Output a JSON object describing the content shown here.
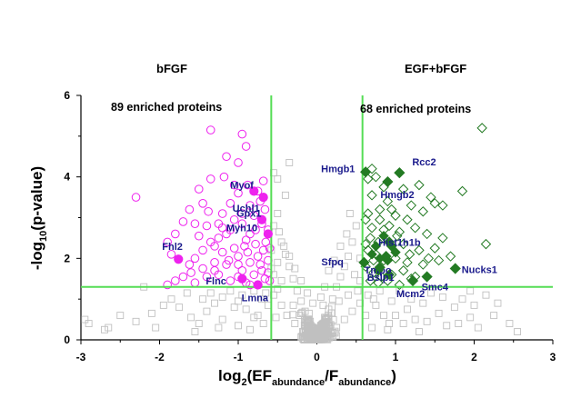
{
  "chart_data": {
    "type": "scatter",
    "xlim": [
      -3,
      3
    ],
    "ylim": [
      0,
      6
    ],
    "x_ticks": [
      "-3",
      "-2",
      "-1",
      "0",
      "1",
      "2",
      "3"
    ],
    "y_ticks": [
      "0",
      "2",
      "4",
      "6"
    ],
    "xlabel": {
      "base": "log",
      "sub1": "2",
      "part1": "(EF",
      "sub2": "abundance",
      "part2": "/F",
      "sub3": "abundance",
      "part3": ")"
    },
    "ylabel": {
      "pre": "-log",
      "sub": "10",
      "post": "(p-value)"
    },
    "panel_titles": {
      "left": "bFGF",
      "right": "EGF+bFGF"
    },
    "annotations": {
      "left": "89 enriched proteins",
      "right": "68 enriched proteins"
    },
    "thresholds": {
      "x_low": -0.58,
      "x_high": 0.58,
      "y": 1.3
    },
    "colors": {
      "left": "#ee22ee",
      "right": "#237a23",
      "nonsig": "#c0c0c0",
      "threshold": "#55dd55",
      "label": "#1a1a8c"
    },
    "labeled_left": [
      {
        "name": "Myof",
        "x": -0.8,
        "y": 3.65
      },
      {
        "name": "Uchl1",
        "x": -0.68,
        "y": 3.5
      },
      {
        "name": "Gpx1",
        "x": -0.7,
        "y": 2.95
      },
      {
        "name": "Myh10",
        "x": -0.62,
        "y": 2.6
      },
      {
        "name": "Fhl2",
        "x": -1.76,
        "y": 1.98
      },
      {
        "name": "Flnc",
        "x": -0.95,
        "y": 1.5
      },
      {
        "name": "Lmna",
        "x": -0.75,
        "y": 1.35
      }
    ],
    "labeled_right": [
      {
        "name": "Hmgb1",
        "x": 0.62,
        "y": 4.12
      },
      {
        "name": "Rcc2",
        "x": 1.05,
        "y": 4.1
      },
      {
        "name": "Hmgb2",
        "x": 0.9,
        "y": 3.88
      },
      {
        "name": "Hist1h1b",
        "x": 0.92,
        "y": 2.4
      },
      {
        "name": "Tmpo",
        "x": 0.88,
        "y": 2.05
      },
      {
        "name": "Sfpq",
        "x": 0.6,
        "y": 1.9
      },
      {
        "name": "Bslp1",
        "x": 0.8,
        "y": 1.78
      },
      {
        "name": "Nucks1",
        "x": 1.76,
        "y": 1.75
      },
      {
        "name": "Smc4",
        "x": 1.4,
        "y": 1.55
      },
      {
        "name": "Mcm2",
        "x": 1.22,
        "y": 1.45
      }
    ],
    "open_left": [
      [
        -2.3,
        3.5
      ],
      [
        -1.35,
        5.15
      ],
      [
        -0.95,
        5.05
      ],
      [
        -0.9,
        4.75
      ],
      [
        -1.15,
        4.5
      ],
      [
        -1.18,
        4.0
      ],
      [
        -1.0,
        4.35
      ],
      [
        -1.35,
        3.95
      ],
      [
        -1.5,
        3.7
      ],
      [
        -1.62,
        3.2
      ],
      [
        -1.7,
        2.9
      ],
      [
        -1.8,
        2.6
      ],
      [
        -1.9,
        2.4
      ],
      [
        -1.85,
        2.1
      ],
      [
        -1.55,
        2.0
      ],
      [
        -1.45,
        2.2
      ],
      [
        -1.3,
        2.3
      ],
      [
        -1.25,
        2.5
      ],
      [
        -1.1,
        2.7
      ],
      [
        -1.05,
        2.95
      ],
      [
        -0.95,
        3.1
      ],
      [
        -0.85,
        3.3
      ],
      [
        -1.0,
        3.6
      ],
      [
        -1.1,
        3.35
      ],
      [
        -1.2,
        3.1
      ],
      [
        -1.4,
        2.8
      ],
      [
        -1.5,
        2.55
      ],
      [
        -1.35,
        2.4
      ],
      [
        -1.2,
        2.15
      ],
      [
        -1.05,
        2.25
      ],
      [
        -0.9,
        2.45
      ],
      [
        -0.78,
        2.7
      ],
      [
        -0.7,
        2.85
      ],
      [
        -0.66,
        3.2
      ],
      [
        -0.72,
        3.4
      ],
      [
        -0.8,
        3.05
      ],
      [
        -0.85,
        2.6
      ],
      [
        -0.92,
        2.3
      ],
      [
        -1.0,
        2.05
      ],
      [
        -1.15,
        1.85
      ],
      [
        -1.3,
        1.9
      ],
      [
        -1.45,
        1.75
      ],
      [
        -1.6,
        1.65
      ],
      [
        -1.7,
        1.55
      ],
      [
        -1.8,
        1.45
      ],
      [
        -1.9,
        1.35
      ],
      [
        -1.55,
        1.4
      ],
      [
        -1.4,
        1.55
      ],
      [
        -1.25,
        1.6
      ],
      [
        -1.1,
        1.45
      ],
      [
        -0.95,
        1.7
      ],
      [
        -0.85,
        1.9
      ],
      [
        -0.75,
        2.05
      ],
      [
        -0.68,
        2.2
      ],
      [
        -0.65,
        2.4
      ],
      [
        -0.7,
        1.7
      ],
      [
        -0.8,
        1.6
      ],
      [
        -0.9,
        1.4
      ],
      [
        -1.0,
        1.55
      ],
      [
        -0.66,
        1.5
      ],
      [
        -0.72,
        1.85
      ],
      [
        -0.62,
        1.95
      ],
      [
        -0.62,
        2.7
      ],
      [
        -0.75,
        3.65
      ],
      [
        -0.88,
        3.8
      ],
      [
        -0.95,
        2.85
      ],
      [
        -1.15,
        2.6
      ],
      [
        -1.25,
        2.85
      ],
      [
        -1.38,
        3.15
      ],
      [
        -1.55,
        2.85
      ],
      [
        -0.68,
        3.9
      ],
      [
        -1.05,
        3.8
      ],
      [
        -0.88,
        2.15
      ],
      [
        -0.6,
        1.45
      ],
      [
        -1.62,
        1.85
      ],
      [
        -1.3,
        1.7
      ],
      [
        -1.0,
        1.85
      ],
      [
        -0.78,
        2.35
      ],
      [
        -0.6,
        2.25
      ],
      [
        -0.62,
        1.65
      ],
      [
        -0.85,
        1.35
      ],
      [
        -1.2,
        2.75
      ],
      [
        -1.45,
        3.35
      ],
      [
        -1.12,
        1.95
      ]
    ],
    "open_right": [
      [
        2.1,
        5.2
      ],
      [
        0.7,
        4.2
      ],
      [
        0.75,
        4.0
      ],
      [
        0.65,
        3.95
      ],
      [
        0.85,
        3.75
      ],
      [
        1.1,
        3.7
      ],
      [
        1.3,
        3.8
      ],
      [
        1.45,
        3.5
      ],
      [
        1.5,
        3.35
      ],
      [
        1.85,
        3.65
      ],
      [
        0.7,
        3.55
      ],
      [
        0.9,
        3.4
      ],
      [
        0.95,
        3.2
      ],
      [
        1.2,
        3.3
      ],
      [
        1.35,
        3.15
      ],
      [
        1.6,
        3.3
      ],
      [
        0.65,
        3.1
      ],
      [
        0.8,
        2.95
      ],
      [
        1.0,
        3.05
      ],
      [
        1.15,
        2.95
      ],
      [
        0.7,
        2.75
      ],
      [
        0.85,
        2.7
      ],
      [
        1.05,
        2.65
      ],
      [
        1.25,
        2.75
      ],
      [
        1.4,
        2.6
      ],
      [
        1.6,
        2.5
      ],
      [
        2.15,
        2.35
      ],
      [
        0.68,
        2.5
      ],
      [
        0.78,
        2.4
      ],
      [
        0.95,
        2.3
      ],
      [
        1.1,
        2.35
      ],
      [
        1.3,
        2.2
      ],
      [
        1.5,
        2.25
      ],
      [
        0.65,
        2.2
      ],
      [
        0.75,
        2.1
      ],
      [
        0.85,
        1.95
      ],
      [
        1.0,
        2.0
      ],
      [
        1.15,
        1.9
      ],
      [
        1.35,
        1.85
      ],
      [
        1.55,
        1.95
      ],
      [
        0.62,
        1.8
      ],
      [
        0.72,
        1.65
      ],
      [
        0.82,
        1.55
      ],
      [
        0.95,
        1.6
      ],
      [
        1.1,
        1.7
      ],
      [
        1.25,
        1.55
      ],
      [
        0.68,
        1.45
      ],
      [
        0.78,
        1.4
      ],
      [
        0.9,
        1.45
      ],
      [
        1.05,
        1.35
      ],
      [
        1.2,
        1.5
      ],
      [
        0.62,
        2.35
      ],
      [
        0.62,
        2.95
      ],
      [
        1.7,
        2.05
      ],
      [
        1.02,
        2.55
      ],
      [
        0.8,
        3.2
      ],
      [
        1.18,
        2.1
      ],
      [
        0.92,
        2.8
      ],
      [
        0.72,
        1.95
      ],
      [
        1.42,
        2.0
      ]
    ],
    "filled_right_extra": [
      [
        0.85,
        2.55
      ],
      [
        0.95,
        2.3
      ],
      [
        1.0,
        2.15
      ],
      [
        0.75,
        2.3
      ],
      [
        0.8,
        2.0
      ],
      [
        0.7,
        2.1
      ],
      [
        0.9,
        1.95
      ],
      [
        0.78,
        1.7
      ],
      [
        0.92,
        1.6
      ]
    ],
    "nonsig": [
      [
        -2.95,
        0.5
      ],
      [
        -2.9,
        0.4
      ],
      [
        -2.65,
        0.3
      ],
      [
        -2.5,
        0.6
      ],
      [
        -2.3,
        0.45
      ],
      [
        -2.1,
        0.65
      ],
      [
        -1.95,
        0.85
      ],
      [
        -1.85,
        1.0
      ],
      [
        -1.75,
        0.8
      ],
      [
        -1.6,
        0.55
      ],
      [
        -1.5,
        0.4
      ],
      [
        -1.4,
        0.7
      ],
      [
        -1.3,
        0.9
      ],
      [
        -1.2,
        1.05
      ],
      [
        -1.1,
        1.2
      ],
      [
        -1.0,
        0.95
      ],
      [
        -0.9,
        0.75
      ],
      [
        -0.8,
        0.55
      ],
      [
        -0.7,
        1.0
      ],
      [
        -0.65,
        1.15
      ],
      [
        -0.62,
        0.85
      ],
      [
        -1.2,
        0.5
      ],
      [
        -1.0,
        0.35
      ],
      [
        -0.85,
        0.25
      ],
      [
        -0.75,
        0.6
      ],
      [
        -0.68,
        0.4
      ],
      [
        -1.05,
        0.8
      ],
      [
        -1.45,
        1.0
      ],
      [
        -1.65,
        1.15
      ],
      [
        -1.35,
        1.15
      ],
      [
        -1.25,
        0.3
      ],
      [
        -1.55,
        0.2
      ],
      [
        -0.95,
        1.1
      ],
      [
        -0.8,
        1.2
      ],
      [
        -2.2,
        1.3
      ],
      [
        -2.05,
        0.3
      ],
      [
        -2.7,
        0.25
      ],
      [
        -0.55,
        1.1
      ],
      [
        -0.5,
        1.25
      ],
      [
        -0.45,
        1.45
      ],
      [
        -0.55,
        1.6
      ],
      [
        -0.5,
        1.9
      ],
      [
        -0.4,
        2.1
      ],
      [
        -0.45,
        2.4
      ],
      [
        -0.55,
        2.8
      ],
      [
        -0.5,
        3.1
      ],
      [
        -0.4,
        3.55
      ],
      [
        -0.5,
        3.95
      ],
      [
        -0.35,
        4.35
      ],
      [
        -0.55,
        4.1
      ],
      [
        -0.35,
        1.8
      ],
      [
        -0.3,
        1.5
      ],
      [
        -0.25,
        1.2
      ],
      [
        -0.2,
        0.95
      ],
      [
        -0.15,
        0.7
      ],
      [
        -0.1,
        0.5
      ],
      [
        -0.05,
        0.3
      ],
      [
        0.0,
        0.2
      ],
      [
        0.05,
        0.35
      ],
      [
        0.1,
        0.55
      ],
      [
        0.15,
        0.75
      ],
      [
        0.2,
        1.0
      ],
      [
        0.25,
        1.3
      ],
      [
        0.3,
        1.55
      ],
      [
        0.35,
        1.8
      ],
      [
        0.4,
        2.05
      ],
      [
        0.45,
        2.4
      ],
      [
        0.5,
        2.8
      ],
      [
        0.42,
        3.1
      ],
      [
        0.3,
        2.3
      ],
      [
        0.22,
        1.95
      ],
      [
        0.15,
        1.7
      ],
      [
        0.1,
        1.3
      ],
      [
        0.05,
        1.05
      ],
      [
        -0.05,
        0.9
      ],
      [
        -0.12,
        1.15
      ],
      [
        -0.2,
        1.45
      ],
      [
        -0.28,
        1.75
      ],
      [
        -0.35,
        2.05
      ],
      [
        -0.42,
        2.3
      ],
      [
        -0.48,
        2.65
      ],
      [
        0.38,
        2.6
      ],
      [
        0.48,
        1.6
      ],
      [
        0.52,
        1.2
      ],
      [
        0.55,
        0.9
      ],
      [
        0.45,
        0.7
      ],
      [
        0.35,
        0.5
      ],
      [
        0.25,
        0.3
      ],
      [
        0.18,
        0.15
      ],
      [
        -0.18,
        0.2
      ],
      [
        -0.28,
        0.4
      ],
      [
        -0.38,
        0.6
      ],
      [
        -0.45,
        0.85
      ],
      [
        -0.52,
        0.55
      ],
      [
        -0.3,
        0.85
      ],
      [
        -0.22,
        0.6
      ],
      [
        -0.1,
        0.65
      ],
      [
        0.08,
        0.85
      ],
      [
        0.28,
        0.95
      ],
      [
        0.4,
        1.1
      ],
      [
        0.55,
        2.0
      ],
      [
        0.55,
        1.45
      ],
      [
        -0.58,
        1.75
      ],
      [
        -0.58,
        2.2
      ],
      [
        0.65,
        1.1
      ],
      [
        0.75,
        0.85
      ],
      [
        0.85,
        0.6
      ],
      [
        0.95,
        0.95
      ],
      [
        1.05,
        1.2
      ],
      [
        1.15,
        0.75
      ],
      [
        1.25,
        0.5
      ],
      [
        1.35,
        0.9
      ],
      [
        1.45,
        1.15
      ],
      [
        1.55,
        0.65
      ],
      [
        1.65,
        0.35
      ],
      [
        1.75,
        0.8
      ],
      [
        1.85,
        1.0
      ],
      [
        1.95,
        0.55
      ],
      [
        2.05,
        0.3
      ],
      [
        2.25,
        0.6
      ],
      [
        2.45,
        0.4
      ],
      [
        2.55,
        0.2
      ],
      [
        2.3,
        0.9
      ],
      [
        2.15,
        1.1
      ],
      [
        1.95,
        1.2
      ],
      [
        0.7,
        0.3
      ],
      [
        0.9,
        0.25
      ],
      [
        1.1,
        0.4
      ],
      [
        1.3,
        0.2
      ],
      [
        0.62,
        0.6
      ],
      [
        0.8,
        1.2
      ],
      [
        1.0,
        0.6
      ],
      [
        1.2,
        1.0
      ],
      [
        1.4,
        0.45
      ],
      [
        1.6,
        1.05
      ],
      [
        1.8,
        0.4
      ],
      [
        2.0,
        0.85
      ],
      [
        0.72,
        1.0
      ],
      [
        0.92,
        0.4
      ]
    ],
    "gray_cloud_seed": 7,
    "gray_cloud_count": 320
  }
}
